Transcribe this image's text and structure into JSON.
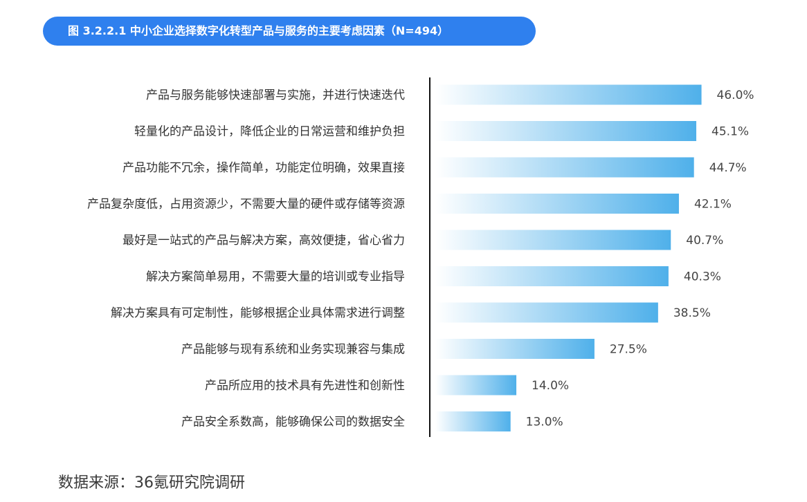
{
  "title": "图 3.2.2.1 中小企业选择数字化转型产品与服务的主要考虑因素（N=494）",
  "source": "数据来源：36氪研究院调研",
  "colors": {
    "title_bg": "#2f80ee",
    "bar_start": "#ffffff",
    "bar_end": "#4fb0ea",
    "axis": "#111111"
  },
  "chart_data": {
    "type": "bar",
    "orientation": "horizontal",
    "title": "图 3.2.2.1 中小企业选择数字化转型产品与服务的主要考虑因素（N=494）",
    "categories": [
      "产品与服务能够快速部署与实施，并进行快速迭代",
      "轻量化的产品设计，降低企业的日常运营和维护负担",
      "产品功能不冗余，操作简单，功能定位明确，效果直接",
      "产品复杂度低，占用资源少，不需要大量的硬件或存储等资源",
      "最好是一站式的产品与解决方案，高效便捷，省心省力",
      "解决方案简单易用，不需要大量的培训或专业指导",
      "解决方案具有可定制性，能够根据企业具体需求进行调整",
      "产品能够与现有系统和业务实现兼容与集成",
      "产品所应用的技术具有先进性和创新性",
      "产品安全系数高，能够确保公司的数据安全"
    ],
    "values": [
      46.0,
      45.1,
      44.7,
      42.1,
      40.7,
      40.3,
      38.5,
      27.5,
      14.0,
      13.0
    ],
    "value_labels": [
      "46.0%",
      "45.1%",
      "44.7%",
      "42.1%",
      "40.7%",
      "40.3%",
      "38.5%",
      "27.5%",
      "14.0%",
      "13.0%"
    ],
    "unit": "%",
    "xlim": [
      0,
      50
    ],
    "grid": false,
    "legend": "none"
  }
}
